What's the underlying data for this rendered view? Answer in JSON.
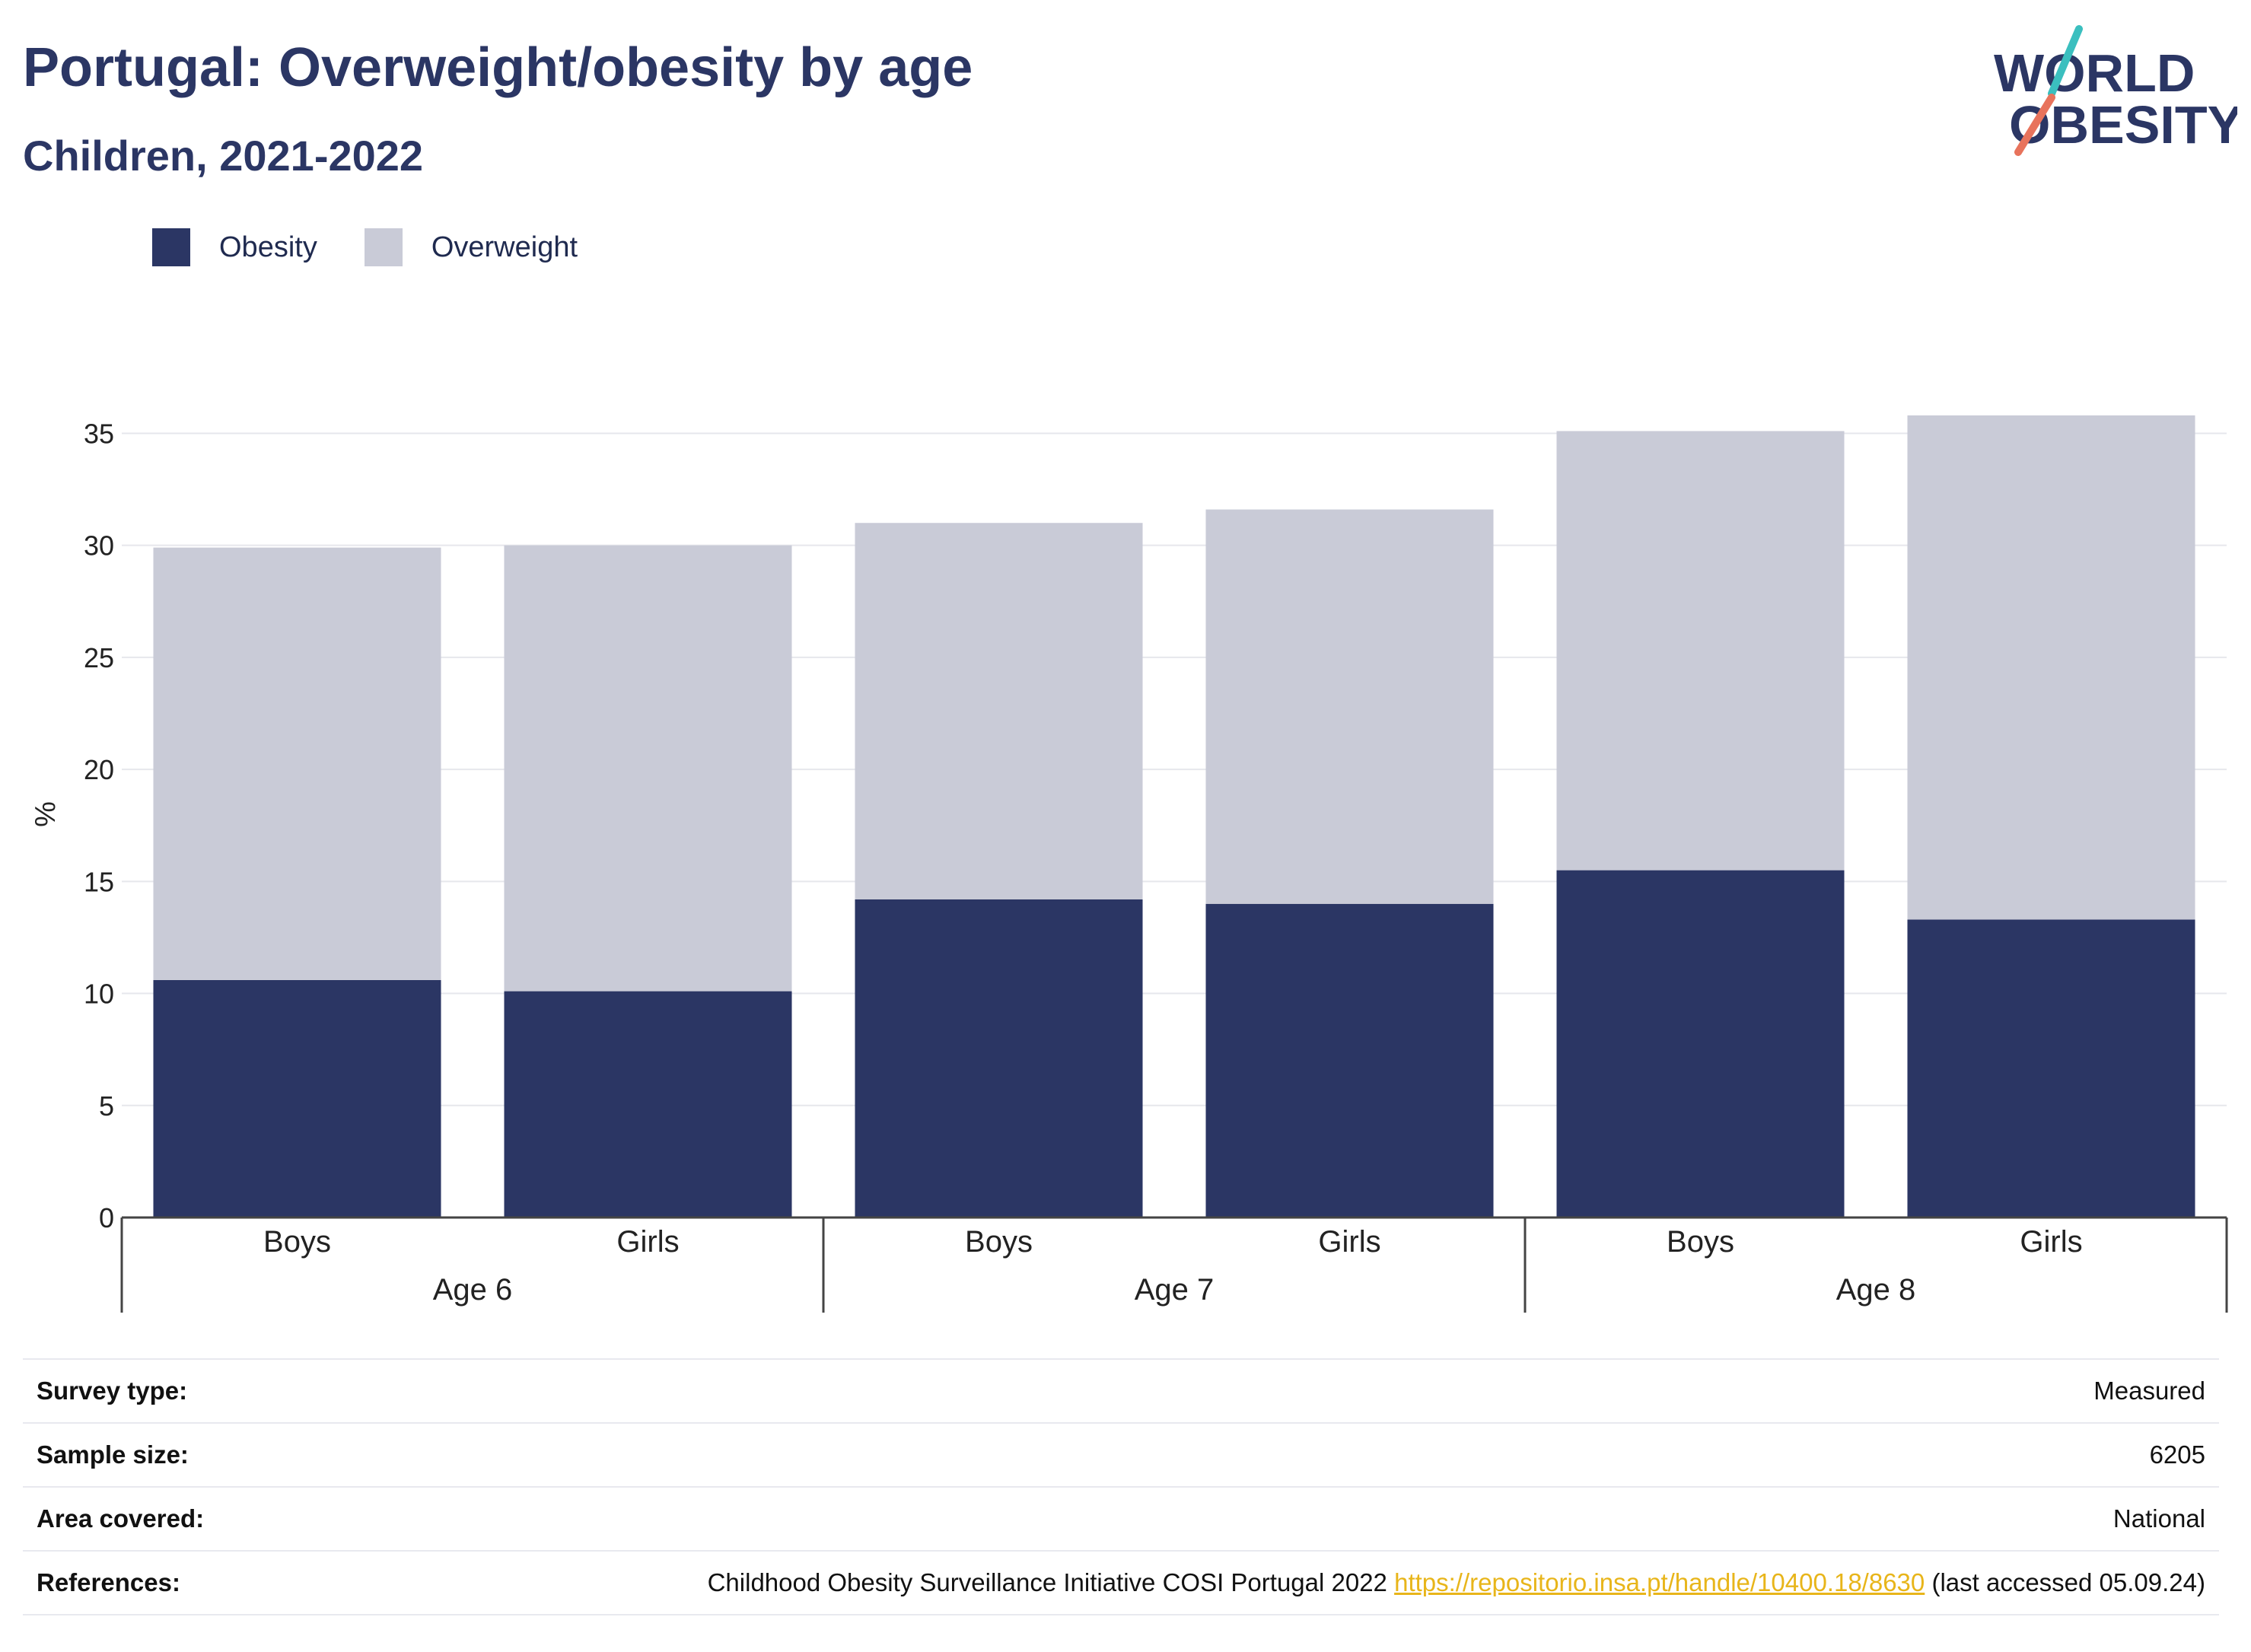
{
  "header": {
    "title": "Portugal: Overweight/obesity by age",
    "subtitle": "Children, 2021-2022"
  },
  "logo": {
    "line1": "WORLD",
    "line2": "OBESITY",
    "accent_teal": "#3bbfbf",
    "accent_coral": "#e8735c",
    "text_color": "#2b3664"
  },
  "legend": {
    "items": [
      {
        "label": "Obesity",
        "color": "#2b3664"
      },
      {
        "label": "Overweight",
        "color": "#c9cbd7"
      }
    ]
  },
  "chart_data": {
    "type": "bar",
    "stacked": true,
    "ylabel": "%",
    "ylim": [
      0,
      36
    ],
    "yticks": [
      0,
      5,
      10,
      15,
      20,
      25,
      30,
      35
    ],
    "grid": true,
    "legend_position": "top-left",
    "categories": [
      "Boys",
      "Girls",
      "Boys",
      "Girls",
      "Boys",
      "Girls"
    ],
    "groups": [
      {
        "label": "Age 6",
        "members": [
          0,
          1
        ]
      },
      {
        "label": "Age 7",
        "members": [
          2,
          3
        ]
      },
      {
        "label": "Age 8",
        "members": [
          4,
          5
        ]
      }
    ],
    "series": [
      {
        "name": "Obesity",
        "color": "#2b3664",
        "values": [
          10.6,
          10.1,
          14.2,
          14.0,
          15.5,
          13.3
        ]
      },
      {
        "name": "Overweight",
        "color": "#c9cbd7",
        "values": [
          19.3,
          19.9,
          16.8,
          17.6,
          19.6,
          22.5
        ]
      }
    ]
  },
  "meta": {
    "rows": [
      {
        "key": "Survey type:",
        "value": "Measured"
      },
      {
        "key": "Sample size:",
        "value": "6205"
      },
      {
        "key": "Area covered:",
        "value": "National"
      }
    ],
    "references": {
      "key": "References:",
      "text_before": "Childhood Obesity Surveillance Initiative COSI Portugal 2022 ",
      "link": "https://repositorio.insa.pt/handle/10400.18/8630",
      "text_after": " (last accessed 05.09.24)"
    }
  }
}
